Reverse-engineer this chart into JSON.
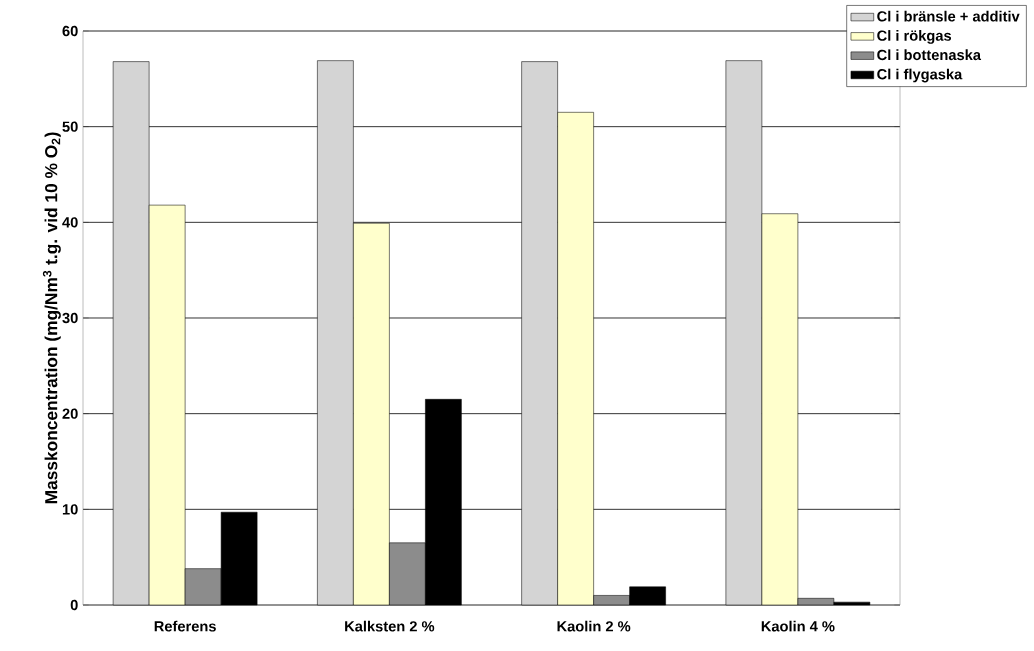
{
  "chart_data": {
    "type": "bar",
    "ylabel": "Masskoncentration (mg/Nm$^{3}$ t.g. vid 10 % O$_{2}$)",
    "categories": [
      "Referens",
      "Kalksten 2 %",
      "Kaolin 2 %",
      "Kaolin 4 %"
    ],
    "series": [
      {
        "name": "Cl i bränsle + additiv",
        "color": "#d4d4d4",
        "values": [
          56.8,
          56.9,
          56.8,
          56.9
        ]
      },
      {
        "name": "Cl i rökgas",
        "color": "#ffffcc",
        "values": [
          41.8,
          39.9,
          51.5,
          40.9
        ]
      },
      {
        "name": "Cl i bottenaska",
        "color": "#8c8c8c",
        "values": [
          3.8,
          6.5,
          1.0,
          0.7
        ]
      },
      {
        "name": "Cl i flygaska",
        "color": "#000000",
        "values": [
          9.7,
          21.5,
          1.9,
          0.3
        ]
      }
    ],
    "ylim": [
      0,
      60
    ],
    "yticks": [
      0,
      10,
      20,
      30,
      40,
      50,
      60
    ],
    "grid": "y",
    "legend": "top right"
  }
}
